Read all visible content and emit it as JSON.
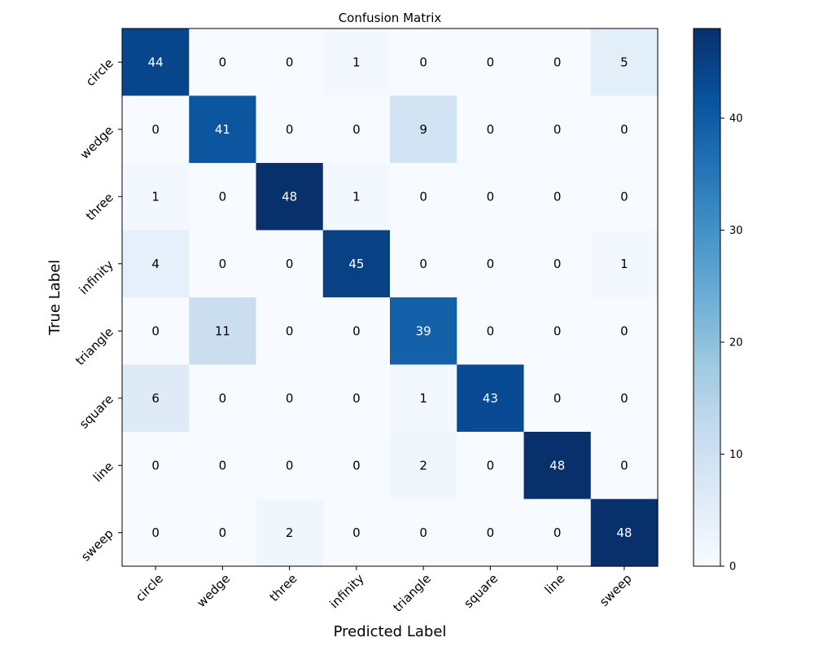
{
  "chart_data": {
    "type": "heatmap",
    "title": "Confusion Matrix",
    "xlabel": "Predicted Label",
    "ylabel": "True Label",
    "x_categories": [
      "circle",
      "wedge",
      "three",
      "infinity",
      "triangle",
      "square",
      "line",
      "sweep"
    ],
    "y_categories": [
      "circle",
      "wedge",
      "three",
      "infinity",
      "triangle",
      "square",
      "line",
      "sweep"
    ],
    "values": [
      [
        44,
        0,
        0,
        1,
        0,
        0,
        0,
        5
      ],
      [
        0,
        41,
        0,
        0,
        9,
        0,
        0,
        0
      ],
      [
        1,
        0,
        48,
        1,
        0,
        0,
        0,
        0
      ],
      [
        4,
        0,
        0,
        45,
        0,
        0,
        0,
        1
      ],
      [
        0,
        11,
        0,
        0,
        39,
        0,
        0,
        0
      ],
      [
        6,
        0,
        0,
        0,
        1,
        43,
        0,
        0
      ],
      [
        0,
        0,
        0,
        0,
        2,
        0,
        48,
        0
      ],
      [
        0,
        0,
        2,
        0,
        0,
        0,
        0,
        48
      ]
    ],
    "colormap": "Blues",
    "color_range": [
      0,
      48
    ],
    "colorbar": {
      "ticks": [
        0,
        10,
        20,
        30,
        40
      ]
    },
    "text_color_dark": "#000000",
    "text_color_light": "#ffffff"
  }
}
